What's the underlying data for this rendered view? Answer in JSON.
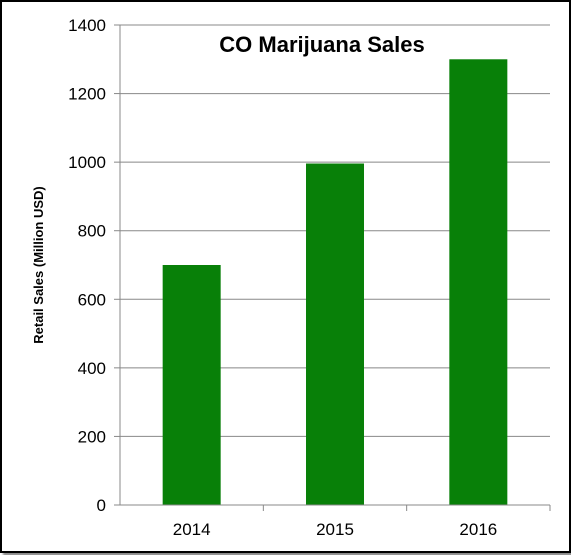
{
  "chart_data": {
    "type": "bar",
    "title": "CO Marijuana Sales",
    "xlabel": "",
    "ylabel": "Retail Sales (Million USD)",
    "categories": [
      "2014",
      "2015",
      "2016"
    ],
    "values": [
      700,
      996,
      1300
    ],
    "ylim": [
      0,
      1400
    ],
    "yticks": [
      0,
      200,
      400,
      600,
      800,
      1000,
      1200,
      1400
    ],
    "grid": true,
    "legend": "none",
    "bar_color": "#088008",
    "gridline_color": "#888888"
  }
}
